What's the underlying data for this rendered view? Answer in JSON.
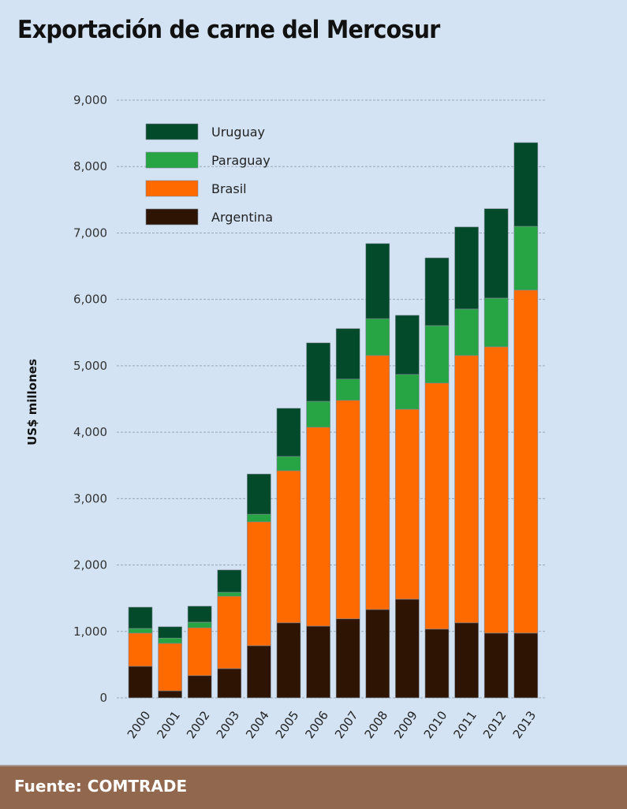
{
  "chart_data": {
    "type": "bar",
    "stacked": true,
    "title": "Exportación de carne del Mercosur",
    "xlabel": "",
    "ylabel": "US$ millones",
    "ylim": [
      0,
      9000
    ],
    "yticks": [
      0,
      1000,
      2000,
      3000,
      4000,
      5000,
      6000,
      7000,
      8000,
      9000
    ],
    "ytick_labels": [
      "0",
      "1,000",
      "2,000",
      "3,000",
      "4,000",
      "5,000",
      "6,000",
      "7,000",
      "8,000",
      "9,000"
    ],
    "grid": "horizontal dashed",
    "legend_position": "top-left",
    "categories": [
      "2000",
      "2001",
      "2002",
      "2003",
      "2004",
      "2005",
      "2006",
      "2007",
      "2008",
      "2009",
      "2010",
      "2011",
      "2012",
      "2013"
    ],
    "series": [
      {
        "name": "Argentina",
        "color": "#2e1503",
        "values": [
          475,
          105,
          335,
          440,
          785,
          1130,
          1080,
          1190,
          1330,
          1485,
          1035,
          1130,
          975,
          975
        ]
      },
      {
        "name": "Brasil",
        "color": "#ff6a00",
        "values": [
          500,
          715,
          720,
          1090,
          1865,
          2290,
          2995,
          3290,
          3825,
          2860,
          3705,
          4025,
          4310,
          5165
        ]
      },
      {
        "name": "Paraguay",
        "color": "#27a545",
        "values": [
          70,
          80,
          85,
          60,
          115,
          215,
          390,
          320,
          555,
          525,
          865,
          700,
          735,
          960
        ]
      },
      {
        "name": "Uruguay",
        "color": "#034a2b",
        "values": [
          320,
          170,
          240,
          335,
          605,
          725,
          880,
          760,
          1130,
          890,
          1020,
          1235,
          1345,
          1260
        ]
      }
    ],
    "legend_order": [
      "Uruguay",
      "Paraguay",
      "Brasil",
      "Argentina"
    ]
  },
  "footer": {
    "source": "Fuente: COMTRADE"
  }
}
